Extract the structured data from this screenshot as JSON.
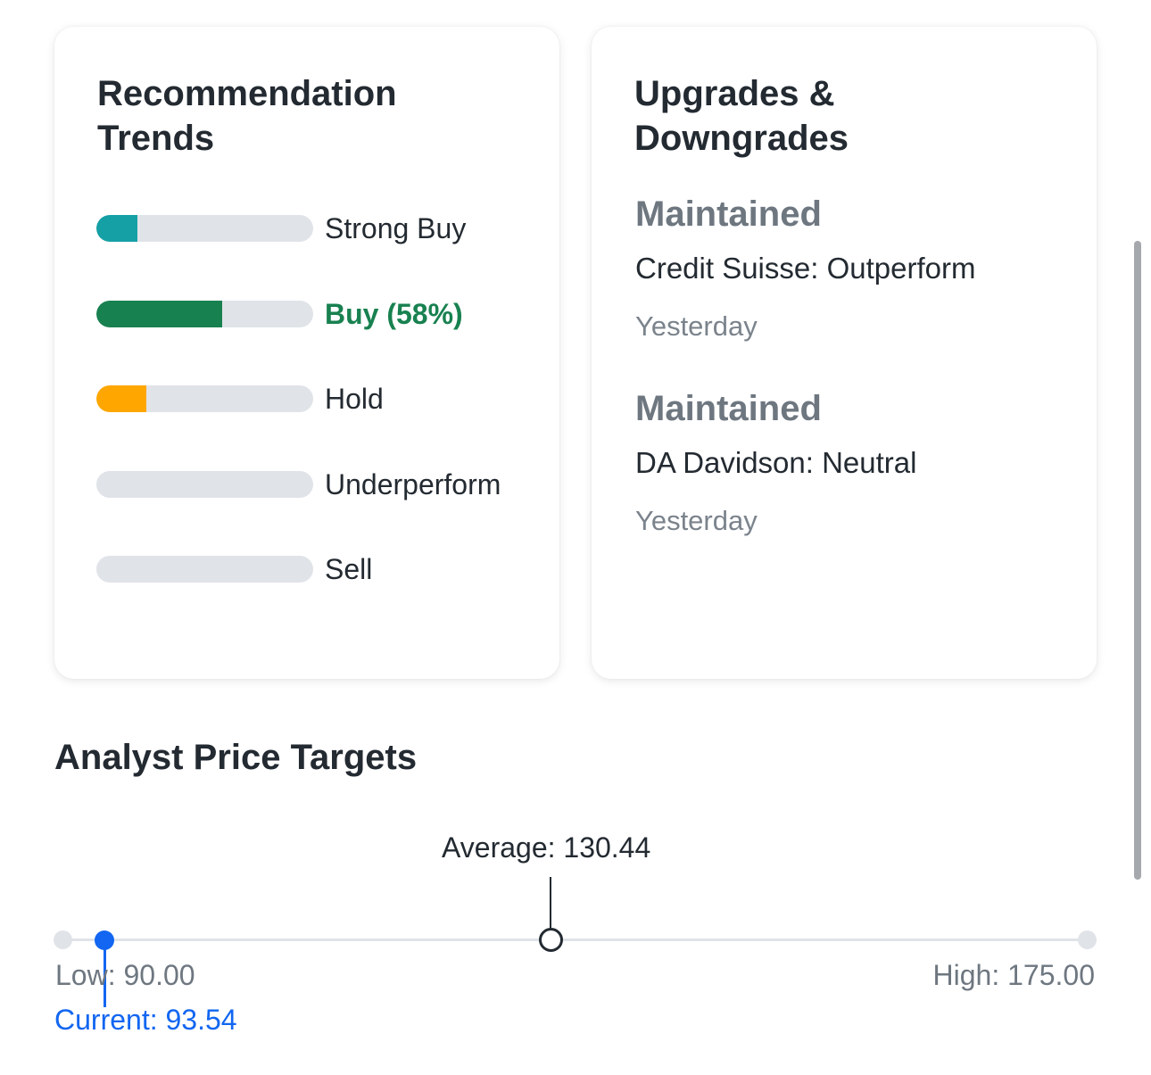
{
  "recommendation_trends": {
    "title": "Recommendation Trends",
    "rows": [
      {
        "label": "Strong Buy",
        "fraction": 0.19,
        "color": "#14a0a4",
        "active": false
      },
      {
        "label": "Buy (58%)",
        "fraction": 0.58,
        "color": "#188150",
        "active": true
      },
      {
        "label": "Hold",
        "fraction": 0.23,
        "color": "#ffa700",
        "active": false
      },
      {
        "label": "Underperform",
        "fraction": 0.0,
        "color": "#e0e3e8",
        "active": false
      },
      {
        "label": "Sell",
        "fraction": 0.0,
        "color": "#e0e3e8",
        "active": false
      }
    ]
  },
  "upgrades_downgrades": {
    "title": "Upgrades & Downgrades",
    "items": [
      {
        "status": "Maintained",
        "firm": "Credit Suisse: Outperform",
        "time": "Yesterday"
      },
      {
        "status": "Maintained",
        "firm": "DA Davidson: Neutral",
        "time": "Yesterday"
      }
    ]
  },
  "price_targets": {
    "title": "Analyst Price Targets",
    "average_label": "Average: 130.44",
    "low_label": "Low: 90.00",
    "high_label": "High: 175.00",
    "current_label": "Current: 93.54",
    "low": 90.0,
    "high": 175.0,
    "average": 130.44,
    "current": 93.54
  }
}
